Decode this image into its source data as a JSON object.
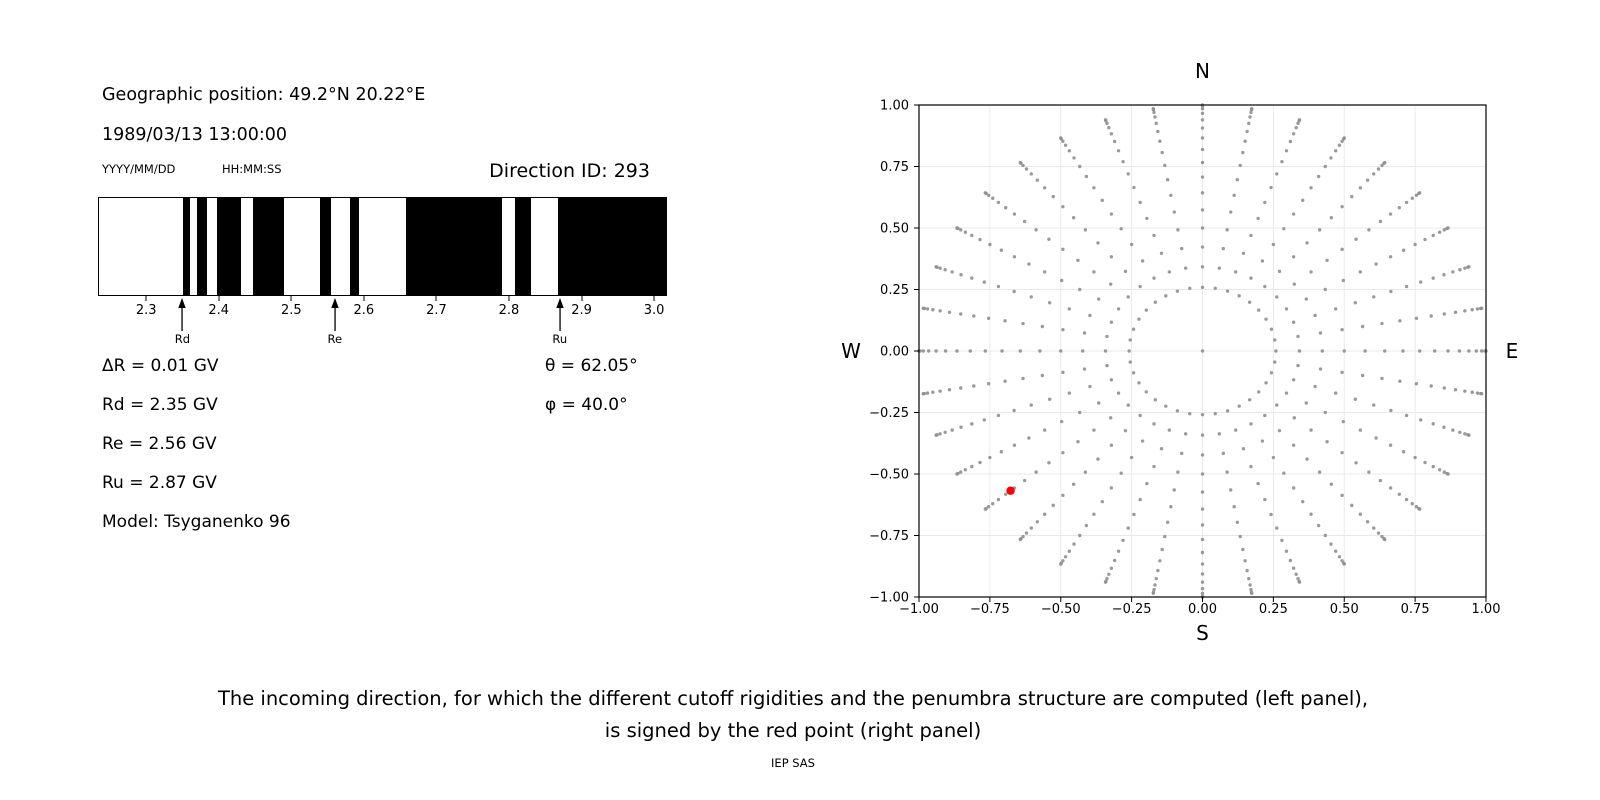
{
  "header": {
    "geo_position": "Geographic position: 49.2°N 20.22°E",
    "datetime": "1989/03/13 13:00:00",
    "date_format_label": "YYYY/MM/DD",
    "time_format_label": "HH:MM:SS",
    "direction_id": "Direction ID: 293"
  },
  "left_panel_params": {
    "delta_r": "ΔR = 0.01 GV",
    "rd": "Rd = 2.35 GV",
    "re": "Re = 2.56 GV",
    "ru": "Ru = 2.87 GV",
    "model": "Model: Tsyganenko 96",
    "theta": "θ = 62.05°",
    "phi": "φ = 40.0°"
  },
  "caption": {
    "line1": "The incoming direction, for which the different cutoff rigidities and the penumbra structure are computed (left panel),",
    "line2": "is signed by the red point (right panel)",
    "credit": "IEP SAS"
  },
  "colors": {
    "band_black": "#000000",
    "dot_gray": "#8f8f8f",
    "red_point": "#ff0000",
    "grid": "#e8e8e8",
    "spine": "#000000"
  },
  "chart_data": [
    {
      "id": "penumbra-barcode",
      "type": "bar",
      "note": "Penumbra structure: black bars = forbidden rigidity intervals, white = allowed; x axis in GV",
      "xlim": [
        2.235,
        3.015
      ],
      "xticks": [
        2.3,
        2.4,
        2.5,
        2.6,
        2.7,
        2.8,
        2.9,
        3.0
      ],
      "xtick_labels": [
        "2.3",
        "2.4",
        "2.5",
        "2.6",
        "2.7",
        "2.8",
        "2.9",
        "3.0"
      ],
      "forbidden_intervals_gv": [
        [
          2.35,
          2.36
        ],
        [
          2.37,
          2.383
        ],
        [
          2.397,
          2.431
        ],
        [
          2.447,
          2.49
        ],
        [
          2.539,
          2.554
        ],
        [
          2.58,
          2.592
        ],
        [
          2.658,
          2.789
        ],
        [
          2.807,
          2.829
        ],
        [
          2.867,
          3.015
        ]
      ],
      "arrows": [
        {
          "label": "Rd",
          "x_gv": 2.35
        },
        {
          "label": "Re",
          "x_gv": 2.56
        },
        {
          "label": "Ru",
          "x_gv": 2.87
        }
      ]
    },
    {
      "id": "direction-grid",
      "type": "scatter",
      "note": "Grid of incoming directions; red point marks the computed direction θ=62.05°, φ=40.0°",
      "xlim": [
        -1,
        1
      ],
      "ylim": [
        -1,
        1
      ],
      "xticks": [
        -1,
        -0.75,
        -0.5,
        -0.25,
        0,
        0.25,
        0.5,
        0.75,
        1
      ],
      "yticks": [
        1,
        0.75,
        0.5,
        0.25,
        0,
        -0.25,
        -0.5,
        -0.75,
        -1
      ],
      "xtick_labels": [
        "−1.00",
        "−0.75",
        "−0.50",
        "−0.25",
        "0.00",
        "0.25",
        "0.50",
        "0.75",
        "1.00"
      ],
      "ytick_labels": [
        "1.00",
        "0.75",
        "0.50",
        "0.25",
        "0.00",
        "−0.25",
        "−0.50",
        "−0.75",
        "−1.00"
      ],
      "grid": true,
      "compass": {
        "top": "N",
        "bottom": "S",
        "left": "W",
        "right": "E"
      },
      "gray_points_rule": {
        "azimuth_deg": {
          "start": 0,
          "step": 10,
          "count": 36
        },
        "zenith_deg": {
          "min": 15,
          "max": 90,
          "step": 5
        },
        "radius_rule": "r = sin(zenith); x = r·sin(azimuth), y = r·cos(azimuth); plus one dot at origin",
        "center_point": [
          0,
          0
        ]
      },
      "red_point": {
        "x": -0.677,
        "y": -0.568
      }
    }
  ]
}
